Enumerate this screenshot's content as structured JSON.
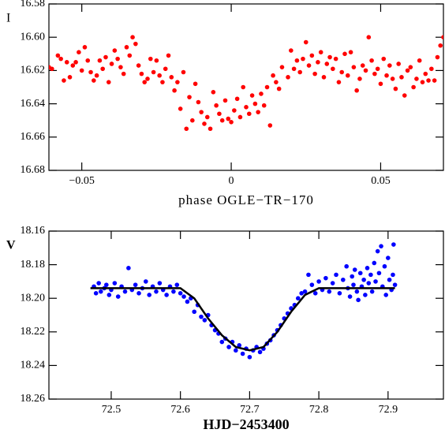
{
  "chart_data": [
    {
      "type": "scatter",
      "y_label": "I",
      "x_label": "phase OGLE−TR−170",
      "xlim": [
        -0.061,
        0.071
      ],
      "ylim": [
        16.68,
        16.58
      ],
      "xticks": [
        {
          "value": -0.05,
          "label": "−0.05"
        },
        0,
        0.05
      ],
      "yticks": [
        16.58,
        {
          "value": 16.6,
          "label": "16.60"
        },
        16.62,
        16.64,
        16.66,
        16.68
      ],
      "series": [
        {
          "color": "#ff0000",
          "x": [
            -0.061,
            -0.06,
            -0.058,
            -0.057,
            -0.056,
            -0.055,
            -0.054,
            -0.053,
            -0.052,
            -0.051,
            -0.05,
            -0.049,
            -0.048,
            -0.047,
            -0.046,
            -0.045,
            -0.044,
            -0.043,
            -0.042,
            -0.041,
            -0.04,
            -0.039,
            -0.038,
            -0.037,
            -0.036,
            -0.035,
            -0.034,
            -0.033,
            -0.032,
            -0.031,
            -0.03,
            -0.029,
            -0.028,
            -0.027,
            -0.026,
            -0.025,
            -0.024,
            -0.023,
            -0.022,
            -0.021,
            -0.02,
            -0.019,
            -0.018,
            -0.017,
            -0.016,
            -0.015,
            -0.014,
            -0.013,
            -0.012,
            -0.011,
            -0.01,
            -0.009,
            -0.008,
            -0.007,
            -0.006,
            -0.005,
            -0.004,
            -0.003,
            -0.002,
            -0.001,
            0.0,
            0.001,
            0.002,
            0.003,
            0.004,
            0.005,
            0.006,
            0.007,
            0.008,
            0.009,
            0.01,
            0.011,
            0.012,
            0.013,
            0.014,
            0.015,
            0.016,
            0.017,
            0.019,
            0.02,
            0.021,
            0.022,
            0.023,
            0.024,
            0.025,
            0.026,
            0.027,
            0.028,
            0.029,
            0.03,
            0.031,
            0.032,
            0.033,
            0.034,
            0.035,
            0.036,
            0.037,
            0.038,
            0.039,
            0.04,
            0.041,
            0.042,
            0.043,
            0.044,
            0.045,
            0.046,
            0.047,
            0.048,
            0.049,
            0.05,
            0.051,
            0.052,
            0.053,
            0.054,
            0.055,
            0.056,
            0.057,
            0.058,
            0.059,
            0.06,
            0.061,
            0.062,
            0.063,
            0.064,
            0.065,
            0.066,
            0.067,
            0.068,
            0.069,
            0.07,
            0.071
          ],
          "values": [
            16.618,
            16.619,
            16.611,
            16.613,
            16.626,
            16.615,
            16.624,
            16.617,
            16.615,
            16.609,
            16.62,
            16.606,
            16.614,
            16.621,
            16.626,
            16.623,
            16.614,
            16.619,
            16.612,
            16.627,
            16.616,
            16.608,
            16.613,
            16.618,
            16.622,
            16.606,
            16.611,
            16.6,
            16.604,
            16.617,
            16.622,
            16.627,
            16.625,
            16.613,
            16.621,
            16.614,
            16.623,
            16.627,
            16.619,
            16.611,
            16.624,
            16.632,
            16.627,
            16.643,
            16.621,
            16.655,
            16.636,
            16.65,
            16.628,
            16.639,
            16.645,
            16.652,
            16.648,
            16.655,
            16.633,
            16.641,
            16.646,
            16.65,
            16.638,
            16.649,
            16.651,
            16.644,
            16.637,
            16.648,
            16.63,
            16.642,
            16.646,
            16.635,
            16.64,
            16.645,
            16.634,
            16.641,
            16.63,
            16.653,
            16.623,
            16.627,
            16.631,
            16.618,
            16.624,
            16.608,
            16.619,
            16.614,
            16.621,
            16.613,
            16.603,
            16.617,
            16.611,
            16.622,
            16.615,
            16.609,
            16.624,
            16.616,
            16.612,
            16.619,
            16.613,
            16.627,
            16.621,
            16.61,
            16.623,
            16.609,
            16.618,
            16.632,
            16.625,
            16.617,
            16.62,
            16.6,
            16.614,
            16.622,
            16.619,
            16.628,
            16.613,
            16.623,
            16.617,
            16.625,
            16.631,
            16.616,
            16.624,
            16.635,
            16.62,
            16.618,
            16.63,
            16.625,
            16.614,
            16.627,
            16.622,
            16.626,
            16.619,
            16.626,
            16.612,
            16.605,
            16.6
          ]
        }
      ]
    },
    {
      "type": "scatter",
      "y_label": "V",
      "x_label": "HJD−2453400",
      "xlim": [
        72.41,
        72.98
      ],
      "ylim": [
        18.26,
        18.16
      ],
      "xticks": [
        72.5,
        72.6,
        72.7,
        72.8,
        72.9
      ],
      "yticks": [
        18.16,
        18.18,
        {
          "value": 18.2,
          "label": "18.20"
        },
        18.22,
        18.24,
        18.26
      ],
      "series": [
        {
          "color": "#0000ff",
          "x": [
            72.475,
            72.478,
            72.482,
            72.485,
            72.49,
            72.493,
            72.497,
            72.5,
            72.505,
            72.51,
            72.515,
            72.52,
            72.525,
            72.53,
            72.535,
            72.54,
            72.545,
            72.55,
            72.555,
            72.56,
            72.565,
            72.57,
            72.575,
            72.58,
            72.585,
            72.59,
            72.595,
            72.6,
            72.605,
            72.61,
            72.615,
            72.62,
            72.625,
            72.63,
            72.635,
            72.64,
            72.645,
            72.65,
            72.655,
            72.66,
            72.665,
            72.67,
            72.675,
            72.68,
            72.685,
            72.69,
            72.695,
            72.7,
            72.705,
            72.71,
            72.715,
            72.72,
            72.725,
            72.73,
            72.735,
            72.74,
            72.745,
            72.75,
            72.755,
            72.76,
            72.765,
            72.77,
            72.775,
            72.78,
            72.785,
            72.79,
            72.795,
            72.8,
            72.805,
            72.81,
            72.815,
            72.82,
            72.825,
            72.83,
            72.835,
            72.84,
            72.842,
            72.845,
            72.848,
            72.85,
            72.852,
            72.855,
            72.857,
            72.86,
            72.862,
            72.865,
            72.867,
            72.87,
            72.872,
            72.875,
            72.877,
            72.88,
            72.882,
            72.885,
            72.887,
            72.89,
            72.892,
            72.895,
            72.897,
            72.9,
            72.902,
            72.905,
            72.907,
            72.91,
            72.908
          ],
          "values": [
            18.193,
            18.197,
            18.191,
            18.196,
            18.194,
            18.192,
            18.198,
            18.195,
            18.191,
            18.199,
            18.193,
            18.196,
            18.182,
            18.195,
            18.192,
            18.197,
            18.194,
            18.19,
            18.198,
            18.193,
            18.196,
            18.191,
            18.195,
            18.198,
            18.193,
            18.196,
            18.192,
            18.197,
            18.199,
            18.202,
            18.2,
            18.208,
            18.204,
            18.211,
            18.213,
            18.21,
            18.216,
            18.219,
            18.221,
            18.226,
            18.224,
            18.229,
            18.226,
            18.231,
            18.228,
            18.233,
            18.23,
            18.235,
            18.231,
            18.229,
            18.232,
            18.23,
            18.227,
            18.225,
            18.222,
            18.219,
            18.216,
            18.212,
            18.209,
            18.206,
            18.204,
            18.2,
            18.197,
            18.196,
            18.186,
            18.192,
            18.197,
            18.19,
            18.195,
            18.188,
            18.196,
            18.191,
            18.186,
            18.197,
            18.189,
            18.181,
            18.194,
            18.199,
            18.187,
            18.192,
            18.183,
            18.196,
            18.201,
            18.185,
            18.193,
            18.189,
            18.198,
            18.182,
            18.191,
            18.186,
            18.196,
            18.179,
            18.19,
            18.172,
            18.185,
            18.169,
            18.193,
            18.181,
            18.198,
            18.176,
            18.189,
            18.195,
            18.186,
            18.192,
            18.168
          ]
        },
        {
          "color": "#000000",
          "mode": "line",
          "x": [
            72.47,
            72.6,
            72.62,
            72.64,
            72.66,
            72.68,
            72.7,
            72.72,
            72.74,
            72.76,
            72.78,
            72.8,
            72.91
          ],
          "values": [
            18.194,
            18.194,
            18.2,
            18.212,
            18.222,
            18.229,
            18.231,
            18.229,
            18.22,
            18.208,
            18.198,
            18.194,
            18.194
          ]
        }
      ]
    }
  ]
}
